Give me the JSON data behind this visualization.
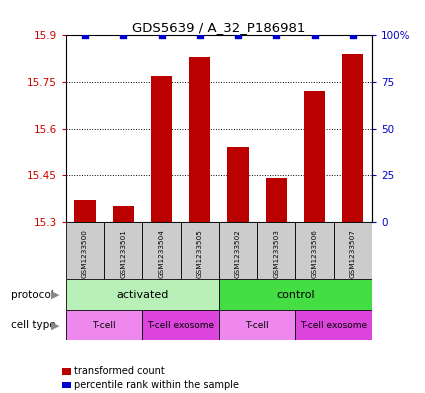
{
  "title": "GDS5639 / A_32_P186981",
  "samples": [
    "GSM1233500",
    "GSM1233501",
    "GSM1233504",
    "GSM1233505",
    "GSM1233502",
    "GSM1233503",
    "GSM1233506",
    "GSM1233507"
  ],
  "transformed_counts": [
    15.37,
    15.35,
    15.77,
    15.83,
    15.54,
    15.44,
    15.72,
    15.84
  ],
  "percentile_ranks": [
    100,
    100,
    100,
    100,
    100,
    100,
    100,
    100
  ],
  "ylim_left": [
    15.3,
    15.9
  ],
  "ylim_right": [
    0,
    100
  ],
  "yticks_left": [
    15.3,
    15.45,
    15.6,
    15.75,
    15.9
  ],
  "yticks_right": [
    0,
    25,
    50,
    75,
    100
  ],
  "bar_color": "#bb0000",
  "dot_color": "#0000cc",
  "protocol_groups": [
    {
      "label": "activated",
      "start": 0,
      "end": 4,
      "color": "#b8f0b8"
    },
    {
      "label": "control",
      "start": 4,
      "end": 8,
      "color": "#44dd44"
    }
  ],
  "cell_type_groups": [
    {
      "label": "T-cell",
      "start": 0,
      "end": 2,
      "color": "#ee88ee"
    },
    {
      "label": "T-cell exosome",
      "start": 2,
      "end": 4,
      "color": "#dd44dd"
    },
    {
      "label": "T-cell",
      "start": 4,
      "end": 6,
      "color": "#ee88ee"
    },
    {
      "label": "T-cell exosome",
      "start": 6,
      "end": 8,
      "color": "#dd44dd"
    }
  ],
  "legend_bar_label": "transformed count",
  "legend_dot_label": "percentile rank within the sample",
  "protocol_label": "protocol",
  "cell_type_label": "cell type",
  "grid_color": "#000000",
  "sample_box_color": "#cccccc"
}
